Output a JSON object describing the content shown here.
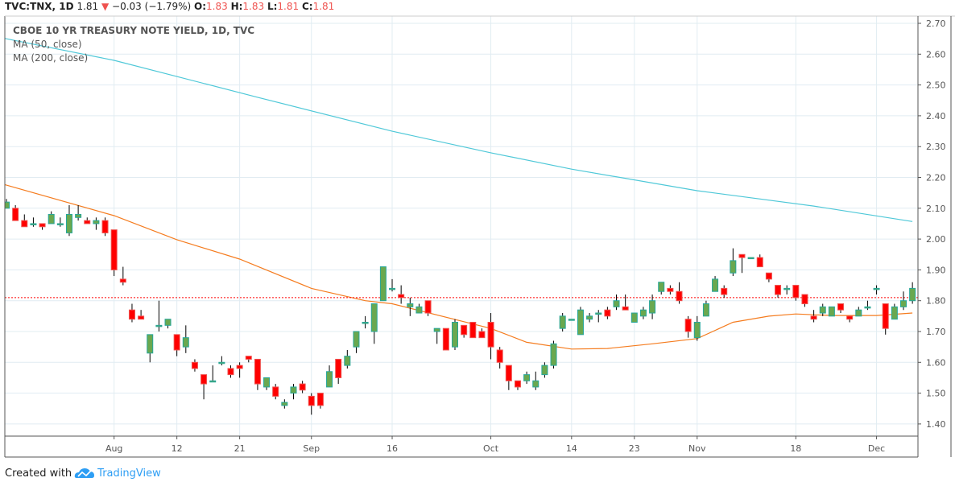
{
  "header": {
    "symbol": "TVC:TNX, 1D",
    "last": "1.81",
    "change_icon": "triangle-down-icon",
    "change": "−0.03 (−1.79%)",
    "o_label": "O:",
    "o": "1.83",
    "h_label": "H:",
    "h": "1.83",
    "l_label": "L:",
    "l": "1.81",
    "c_label": "C:",
    "c": "1.81"
  },
  "footer": {
    "created_with": "Created with",
    "brand": "TradingView",
    "logo_icon": "tradingview-cloud-icon"
  },
  "colors": {
    "up_body": "#6aa84f",
    "up_border": "#26a69a",
    "down_body": "#ff0000",
    "down_border": "#ef5350",
    "ma50": "#f57c1f",
    "ma200": "#4fc8d8",
    "last_price_line": "#ff0000",
    "grid": "#e1ecf2",
    "negative_text": "#ef5350"
  },
  "chart_data": {
    "type": "candlestick",
    "title": "CBOE 10 YR TREASURY NOTE YIELD, 1D, TVC",
    "ylim": [
      1.35,
      2.72
    ],
    "grid": true,
    "y_ticks": [
      "2.70",
      "2.60",
      "2.50",
      "2.40",
      "2.30",
      "2.20",
      "2.10",
      "2.00",
      "1.90",
      "1.80",
      "1.70",
      "1.60",
      "1.50",
      "1.40"
    ],
    "x_ticks": [
      {
        "label": "Aug",
        "date": "08-01"
      },
      {
        "label": "12",
        "date": "08-12"
      },
      {
        "label": "21",
        "date": "08-21"
      },
      {
        "label": "Sep",
        "date": "09-03"
      },
      {
        "label": "16",
        "date": "09-16"
      },
      {
        "label": "Oct",
        "date": "10-01"
      },
      {
        "label": "14",
        "date": "10-14"
      },
      {
        "label": "23",
        "date": "10-23"
      },
      {
        "label": "Nov",
        "date": "11-01"
      },
      {
        "label": "18",
        "date": "11-18"
      },
      {
        "label": "Dec",
        "date": "12-02"
      }
    ],
    "last_price": 1.81,
    "candle_fields": [
      "date",
      "open",
      "high",
      "low",
      "close"
    ],
    "candles": [
      [
        "07-16",
        2.1,
        2.13,
        2.1,
        2.12
      ],
      [
        "07-17",
        2.1,
        2.11,
        2.06,
        2.06
      ],
      [
        "07-18",
        2.06,
        2.08,
        2.04,
        2.04
      ],
      [
        "07-19",
        2.05,
        2.07,
        2.04,
        2.05
      ],
      [
        "07-22",
        2.05,
        2.05,
        2.03,
        2.04
      ],
      [
        "07-23",
        2.05,
        2.09,
        2.05,
        2.08
      ],
      [
        "07-24",
        2.05,
        2.07,
        2.04,
        2.05
      ],
      [
        "07-25",
        2.02,
        2.11,
        2.01,
        2.08
      ],
      [
        "07-26",
        2.07,
        2.11,
        2.06,
        2.08
      ],
      [
        "07-29",
        2.06,
        2.07,
        2.05,
        2.05
      ],
      [
        "07-30",
        2.05,
        2.07,
        2.03,
        2.06
      ],
      [
        "07-31",
        2.06,
        2.07,
        2.01,
        2.02
      ],
      [
        "08-01",
        2.03,
        2.03,
        1.88,
        1.9
      ],
      [
        "08-02",
        1.87,
        1.91,
        1.85,
        1.86
      ],
      [
        "08-05",
        1.77,
        1.79,
        1.73,
        1.74
      ],
      [
        "08-06",
        1.75,
        1.77,
        1.74,
        1.74
      ],
      [
        "08-07",
        1.63,
        1.69,
        1.6,
        1.69
      ],
      [
        "08-08",
        1.72,
        1.8,
        1.7,
        1.72
      ],
      [
        "08-09",
        1.72,
        1.74,
        1.71,
        1.74
      ],
      [
        "08-12",
        1.69,
        1.69,
        1.62,
        1.64
      ],
      [
        "08-13",
        1.65,
        1.72,
        1.63,
        1.68
      ],
      [
        "08-14",
        1.6,
        1.61,
        1.57,
        1.58
      ],
      [
        "08-15",
        1.56,
        1.56,
        1.48,
        1.53
      ],
      [
        "08-16",
        1.54,
        1.59,
        1.54,
        1.54
      ],
      [
        "08-19",
        1.6,
        1.62,
        1.59,
        1.6
      ],
      [
        "08-20",
        1.58,
        1.59,
        1.55,
        1.56
      ],
      [
        "08-21",
        1.59,
        1.6,
        1.55,
        1.58
      ],
      [
        "08-22",
        1.62,
        1.62,
        1.6,
        1.61
      ],
      [
        "08-23",
        1.61,
        1.61,
        1.51,
        1.53
      ],
      [
        "08-26",
        1.52,
        1.55,
        1.51,
        1.55
      ],
      [
        "08-27",
        1.52,
        1.53,
        1.48,
        1.49
      ],
      [
        "08-28",
        1.46,
        1.48,
        1.45,
        1.47
      ],
      [
        "08-29",
        1.5,
        1.53,
        1.48,
        1.52
      ],
      [
        "08-30",
        1.53,
        1.54,
        1.5,
        1.51
      ],
      [
        "09-03",
        1.49,
        1.5,
        1.43,
        1.46
      ],
      [
        "09-04",
        1.5,
        1.5,
        1.45,
        1.46
      ],
      [
        "09-05",
        1.52,
        1.59,
        1.52,
        1.57
      ],
      [
        "09-06",
        1.61,
        1.61,
        1.53,
        1.55
      ],
      [
        "09-09",
        1.59,
        1.64,
        1.58,
        1.62
      ],
      [
        "09-10",
        1.65,
        1.7,
        1.63,
        1.7
      ],
      [
        "09-11",
        1.73,
        1.75,
        1.71,
        1.73
      ],
      [
        "09-12",
        1.7,
        1.79,
        1.66,
        1.79
      ],
      [
        "09-13",
        1.8,
        1.91,
        1.8,
        1.91
      ],
      [
        "09-16",
        1.84,
        1.87,
        1.83,
        1.84
      ],
      [
        "09-17",
        1.82,
        1.85,
        1.79,
        1.81
      ],
      [
        "09-18",
        1.78,
        1.81,
        1.75,
        1.79
      ],
      [
        "09-19",
        1.76,
        1.79,
        1.76,
        1.78
      ],
      [
        "09-20",
        1.8,
        1.8,
        1.75,
        1.76
      ],
      [
        "09-23",
        1.7,
        1.71,
        1.66,
        1.71
      ],
      [
        "09-24",
        1.71,
        1.71,
        1.64,
        1.64
      ],
      [
        "09-25",
        1.65,
        1.74,
        1.64,
        1.73
      ],
      [
        "09-26",
        1.72,
        1.72,
        1.68,
        1.69
      ],
      [
        "09-27",
        1.73,
        1.73,
        1.68,
        1.68
      ],
      [
        "09-30",
        1.7,
        1.71,
        1.68,
        1.68
      ],
      [
        "10-01",
        1.73,
        1.76,
        1.61,
        1.65
      ],
      [
        "10-02",
        1.64,
        1.65,
        1.58,
        1.6
      ],
      [
        "10-03",
        1.59,
        1.59,
        1.51,
        1.54
      ],
      [
        "10-04",
        1.54,
        1.54,
        1.51,
        1.52
      ],
      [
        "10-07",
        1.54,
        1.57,
        1.53,
        1.56
      ],
      [
        "10-08",
        1.52,
        1.57,
        1.51,
        1.54
      ],
      [
        "10-09",
        1.56,
        1.6,
        1.55,
        1.59
      ],
      [
        "10-10",
        1.59,
        1.67,
        1.58,
        1.66
      ],
      [
        "10-11",
        1.71,
        1.76,
        1.7,
        1.75
      ],
      [
        "10-14",
        1.74,
        1.74,
        1.74,
        1.74
      ],
      [
        "10-15",
        1.69,
        1.78,
        1.69,
        1.77
      ],
      [
        "10-16",
        1.74,
        1.76,
        1.73,
        1.75
      ],
      [
        "10-17",
        1.76,
        1.77,
        1.73,
        1.76
      ],
      [
        "10-18",
        1.77,
        1.78,
        1.74,
        1.75
      ],
      [
        "10-21",
        1.78,
        1.82,
        1.77,
        1.8
      ],
      [
        "10-22",
        1.78,
        1.82,
        1.77,
        1.77
      ],
      [
        "10-23",
        1.73,
        1.76,
        1.73,
        1.76
      ],
      [
        "10-24",
        1.75,
        1.78,
        1.74,
        1.77
      ],
      [
        "10-25",
        1.76,
        1.82,
        1.74,
        1.8
      ],
      [
        "10-28",
        1.83,
        1.86,
        1.82,
        1.86
      ],
      [
        "10-29",
        1.84,
        1.85,
        1.82,
        1.83
      ],
      [
        "10-30",
        1.83,
        1.86,
        1.79,
        1.8
      ],
      [
        "10-31",
        1.74,
        1.75,
        1.68,
        1.7
      ],
      [
        "11-01",
        1.68,
        1.75,
        1.67,
        1.73
      ],
      [
        "11-04",
        1.75,
        1.8,
        1.75,
        1.79
      ],
      [
        "11-05",
        1.83,
        1.88,
        1.83,
        1.87
      ],
      [
        "11-06",
        1.84,
        1.85,
        1.81,
        1.82
      ],
      [
        "11-07",
        1.89,
        1.97,
        1.88,
        1.93
      ],
      [
        "11-08",
        1.95,
        1.95,
        1.89,
        1.94
      ],
      [
        "11-11",
        1.94,
        1.94,
        1.94,
        1.94
      ],
      [
        "11-12",
        1.94,
        1.95,
        1.91,
        1.91
      ],
      [
        "11-13",
        1.89,
        1.89,
        1.86,
        1.87
      ],
      [
        "11-14",
        1.85,
        1.85,
        1.81,
        1.82
      ],
      [
        "11-15",
        1.84,
        1.85,
        1.82,
        1.84
      ],
      [
        "11-18",
        1.85,
        1.85,
        1.8,
        1.81
      ],
      [
        "11-19",
        1.82,
        1.82,
        1.78,
        1.79
      ],
      [
        "11-20",
        1.75,
        1.77,
        1.73,
        1.74
      ],
      [
        "11-21",
        1.76,
        1.79,
        1.75,
        1.78
      ],
      [
        "11-22",
        1.75,
        1.78,
        1.75,
        1.78
      ],
      [
        "11-25",
        1.79,
        1.79,
        1.76,
        1.77
      ],
      [
        "11-26",
        1.75,
        1.75,
        1.73,
        1.74
      ],
      [
        "11-27",
        1.75,
        1.78,
        1.75,
        1.77
      ],
      [
        "11-29",
        1.78,
        1.8,
        1.77,
        1.78
      ],
      [
        "12-02",
        1.84,
        1.85,
        1.82,
        1.84
      ],
      [
        "12-03",
        1.79,
        1.79,
        1.69,
        1.71
      ],
      [
        "12-04",
        1.74,
        1.79,
        1.74,
        1.78
      ],
      [
        "12-05",
        1.78,
        1.83,
        1.77,
        1.8
      ],
      [
        "12-06",
        1.8,
        1.86,
        1.79,
        1.84
      ]
    ],
    "series": [
      {
        "name": "MA (50, close)",
        "type": "line",
        "points": [
          [
            "07-16",
            2.175
          ],
          [
            "08-01",
            2.076
          ],
          [
            "08-12",
            1.998
          ],
          [
            "08-21",
            1.935
          ],
          [
            "09-03",
            1.84
          ],
          [
            "09-11",
            1.8
          ],
          [
            "09-16",
            1.79
          ],
          [
            "10-01",
            1.71
          ],
          [
            "10-07",
            1.665
          ],
          [
            "10-14",
            1.643
          ],
          [
            "10-18",
            1.645
          ],
          [
            "10-25",
            1.66
          ],
          [
            "11-01",
            1.677
          ],
          [
            "11-07",
            1.73
          ],
          [
            "11-13",
            1.75
          ],
          [
            "11-18",
            1.757
          ],
          [
            "11-22",
            1.752
          ],
          [
            "12-02",
            1.752
          ],
          [
            "12-06",
            1.76
          ]
        ]
      },
      {
        "name": "MA (200, close)",
        "type": "line",
        "points": [
          [
            "07-16",
            2.65
          ],
          [
            "08-01",
            2.58
          ],
          [
            "08-23",
            2.46
          ],
          [
            "09-16",
            2.35
          ],
          [
            "10-01",
            2.28
          ],
          [
            "10-14",
            2.227
          ],
          [
            "11-01",
            2.157
          ],
          [
            "11-20",
            2.107
          ],
          [
            "12-06",
            2.057
          ]
        ]
      }
    ]
  }
}
